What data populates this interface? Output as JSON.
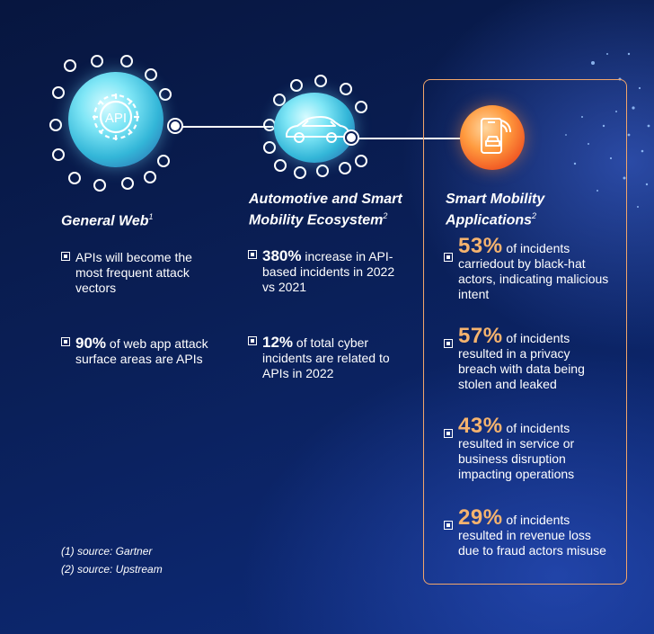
{
  "columns": [
    {
      "title": "General Web",
      "sup": "1",
      "items": [
        {
          "stat": "",
          "text": "APIs will become the most frequent attack vectors"
        },
        {
          "stat": "90%",
          "text": " of web app attack surface areas are APIs"
        }
      ]
    },
    {
      "title_line1": "Automotive and Smart",
      "title_line2": "Mobility Ecosystem",
      "sup": "2",
      "items": [
        {
          "stat": "380%",
          "text": " increase in API- based incidents in 2022 vs 2021"
        },
        {
          "stat": "12%",
          "text": " of total cyber incidents are related to APIs in 2022"
        }
      ]
    },
    {
      "title_line1": "Smart Mobility",
      "title_line2": "Applications",
      "sup": "2",
      "items": [
        {
          "stat": "53%",
          "text": " of incidents carriedout by black-hat actors, indicating malicious intent"
        },
        {
          "stat": "57%",
          "text": " of incidents resulted in a privacy breach with data being stolen and leaked"
        },
        {
          "stat": "43%",
          "text": " of incidents resulted in service or business disruption impacting operations"
        },
        {
          "stat": "29%",
          "text": " of incidents resulted in revenue loss due to fraud actors misuse"
        }
      ]
    }
  ],
  "icons": {
    "general_web": "api-gear-icon",
    "automotive": "car-icon",
    "smart_mobility": "phone-car-icon",
    "api_label": "API"
  },
  "sources": [
    "(1) source: Gartner",
    "(2) source: Upstream"
  ],
  "colors": {
    "background": "#0a1f57",
    "highlight": "#f5b36e",
    "box_border": "#f2a66b",
    "cyan_circle": "#5fd6ee",
    "orange_circle": "#f15a24"
  }
}
